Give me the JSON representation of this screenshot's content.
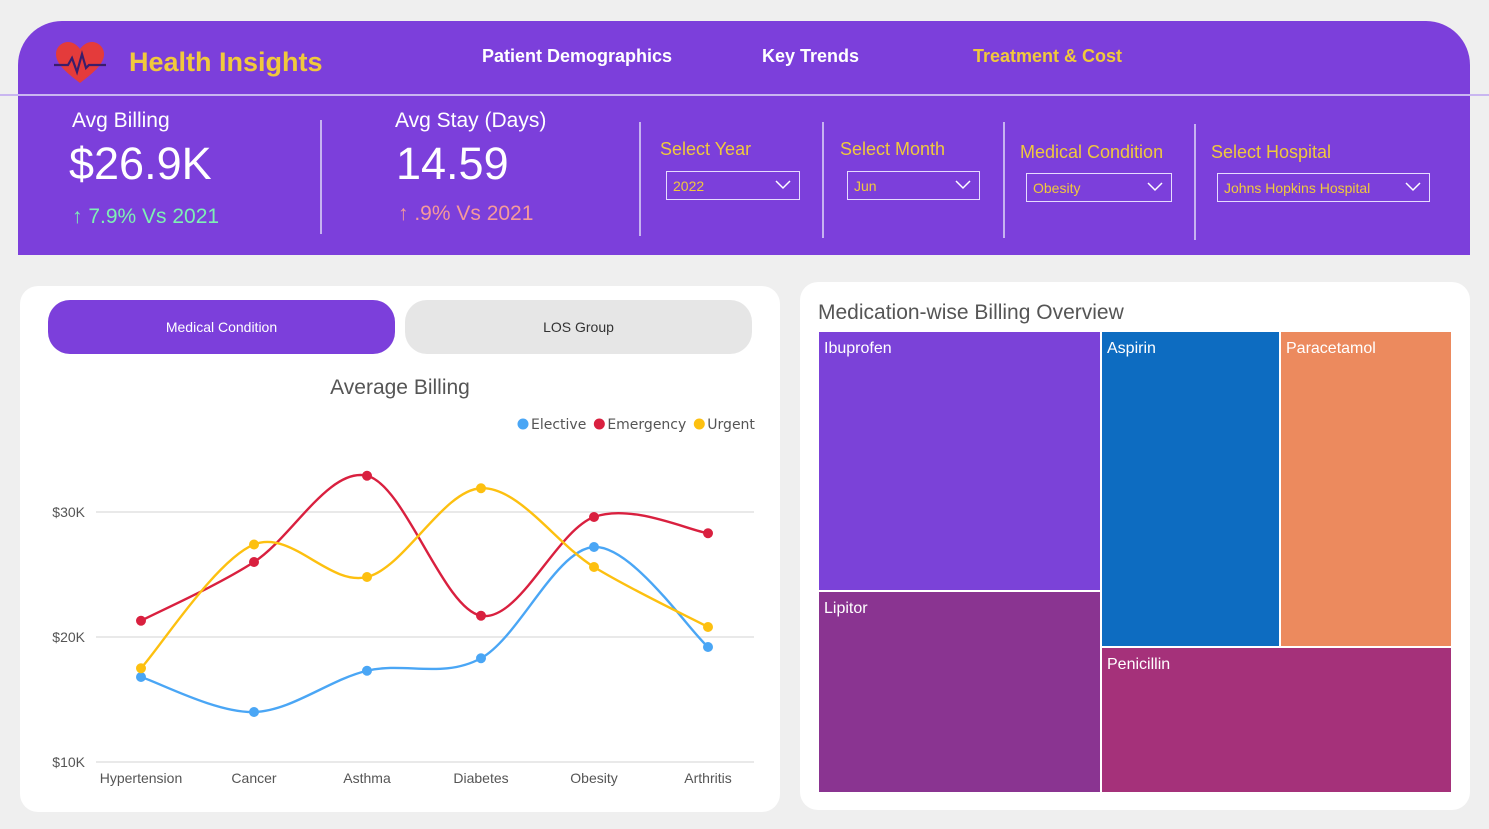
{
  "app": {
    "title": "Health Insights"
  },
  "nav": [
    {
      "label": "Patient Demographics",
      "active": false
    },
    {
      "label": "Key Trends",
      "active": false
    },
    {
      "label": "Treatment & Cost",
      "active": true
    }
  ],
  "kpis": [
    {
      "label": "Avg Billing",
      "value": "$26.9K",
      "delta": "↑ 7.9% Vs 2021",
      "delta_color": "#7ef0b4"
    },
    {
      "label": "Avg Stay (Days)",
      "value": "14.59",
      "delta": "↑ .9% Vs 2021",
      "delta_color": "#f59a9a"
    }
  ],
  "filters": [
    {
      "label": "Select Year",
      "value": "2022"
    },
    {
      "label": "Select Month",
      "value": "Jun"
    },
    {
      "label": "Medical Condition",
      "value": "Obesity"
    },
    {
      "label": "Select Hospital",
      "value": "Johns Hopkins Hospital"
    }
  ],
  "toggles": {
    "active": "Medical Condition",
    "inactive": "LOS Group"
  },
  "chart_data": {
    "type": "line",
    "title": "Average Billing",
    "categories": [
      "Hypertension",
      "Cancer",
      "Asthma",
      "Diabetes",
      "Obesity",
      "Arthritis"
    ],
    "series": [
      {
        "name": "Elective",
        "color": "#4aa6f5",
        "values": [
          16800,
          14000,
          17300,
          18300,
          27200,
          19200
        ]
      },
      {
        "name": "Emergency",
        "color": "#d9203f",
        "values": [
          21300,
          26000,
          32900,
          21700,
          29600,
          28300
        ]
      },
      {
        "name": "Urgent",
        "color": "#fdc010",
        "values": [
          17500,
          27400,
          24800,
          31900,
          25600,
          20800
        ]
      }
    ],
    "y_ticks": [
      "$10K",
      "$20K",
      "$30K"
    ],
    "ylim": [
      10000,
      30000
    ],
    "legend": "top-right",
    "grid": true
  },
  "treemap": {
    "title": "Medication-wise Billing Overview",
    "items": [
      {
        "name": "Ibuprofen",
        "color": "#7b42d8"
      },
      {
        "name": "Lipitor",
        "color": "#8a3491"
      },
      {
        "name": "Aspirin",
        "color": "#0d6cc1"
      },
      {
        "name": "Paracetamol",
        "color": "#ec8a5e"
      },
      {
        "name": "Penicillin",
        "color": "#a5317a"
      }
    ]
  }
}
